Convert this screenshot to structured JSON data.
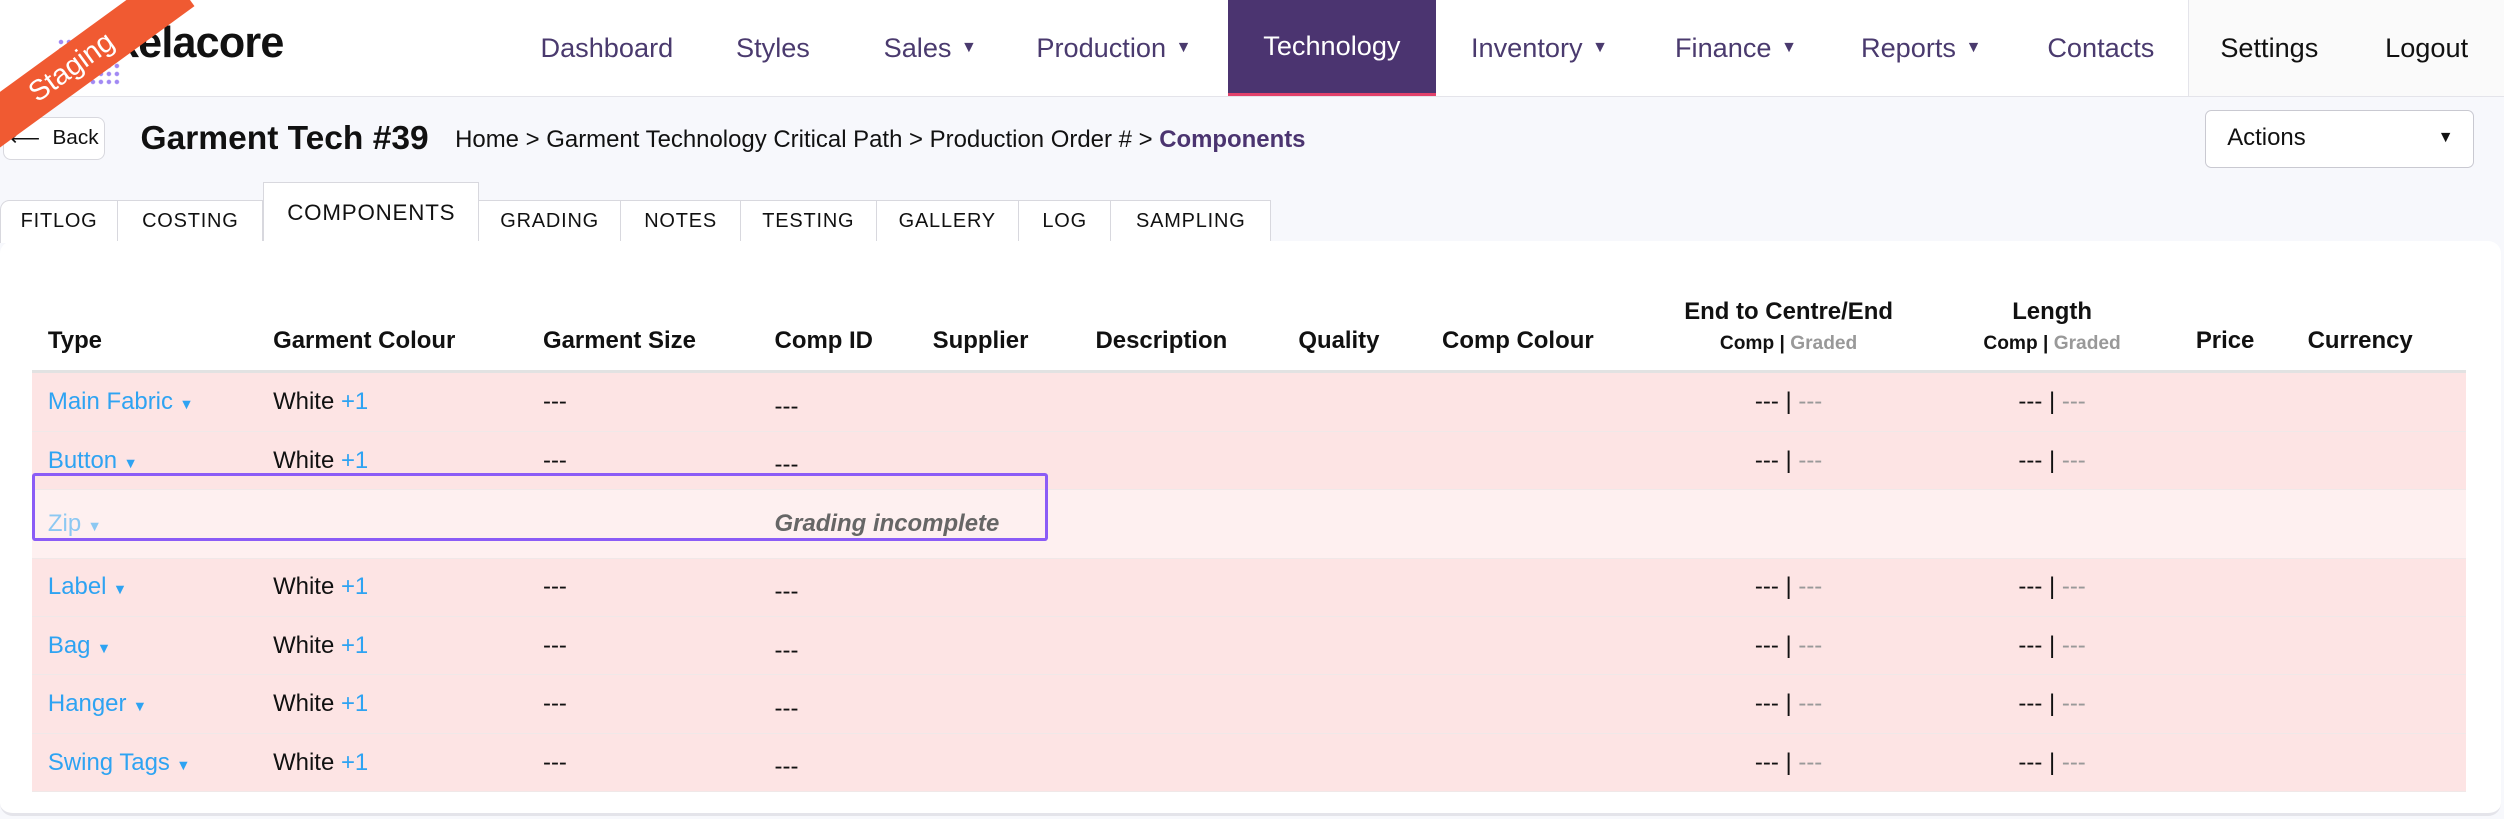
{
  "brand": {
    "logo_text": "kelacore",
    "env_badge": "Staging"
  },
  "nav": {
    "items": [
      {
        "label": "Dashboard",
        "caret": false
      },
      {
        "label": "Styles",
        "caret": false
      },
      {
        "label": "Sales",
        "caret": true
      },
      {
        "label": "Production",
        "caret": true
      },
      {
        "label": "Technology",
        "caret": false,
        "active": true
      },
      {
        "label": "Inventory",
        "caret": true
      },
      {
        "label": "Finance",
        "caret": true
      },
      {
        "label": "Reports",
        "caret": true
      },
      {
        "label": "Contacts",
        "caret": false
      }
    ],
    "settings": "Settings",
    "logout": "Logout"
  },
  "header": {
    "back": "Back",
    "title": "Garment Tech #39",
    "breadcrumb": "Home > Garment Technology Critical Path > Production Order # > ",
    "breadcrumb_current": "Components",
    "actions": "Actions"
  },
  "tabs": [
    "FITLOG",
    "COSTING",
    "COMPONENTS",
    "GRADING",
    "NOTES",
    "TESTING",
    "GALLERY",
    "LOG",
    "SAMPLING"
  ],
  "active_tab": "COMPONENTS",
  "table": {
    "headers": {
      "type": "Type",
      "colour": "Garment Colour",
      "size": "Garment Size",
      "comp_id": "Comp ID",
      "supplier": "Supplier",
      "description": "Description",
      "quality": "Quality",
      "comp_colour": "Comp Colour",
      "end": "End to Centre/End",
      "length": "Length",
      "comp": "Comp",
      "graded": "Graded",
      "price": "Price",
      "currency": "Currency"
    },
    "rows": [
      {
        "type": "Main Fabric",
        "colour": "White",
        "extra": "+1",
        "size": "---",
        "comp_id": "---",
        "end_comp": "---",
        "end_graded": "---",
        "len_comp": "---",
        "len_graded": "---"
      },
      {
        "type": "Button",
        "colour": "White",
        "extra": "+1",
        "size": "---",
        "comp_id": "---",
        "end_comp": "---",
        "end_graded": "---",
        "len_comp": "---",
        "len_graded": "---"
      },
      {
        "type": "Zip",
        "status": "Grading incomplete"
      },
      {
        "type": "Label",
        "colour": "White",
        "extra": "+1",
        "size": "---",
        "comp_id": "---",
        "end_comp": "---",
        "end_graded": "---",
        "len_comp": "---",
        "len_graded": "---"
      },
      {
        "type": "Bag",
        "colour": "White",
        "extra": "+1",
        "size": "---",
        "comp_id": "---",
        "end_comp": "---",
        "end_graded": "---",
        "len_comp": "---",
        "len_graded": "---"
      },
      {
        "type": "Hanger",
        "colour": "White",
        "extra": "+1",
        "size": "---",
        "comp_id": "---",
        "end_comp": "---",
        "end_graded": "---",
        "len_comp": "---",
        "len_graded": "---"
      },
      {
        "type": "Swing Tags",
        "colour": "White",
        "extra": "+1",
        "size": "---",
        "comp_id": "---",
        "end_comp": "---",
        "end_graded": "---",
        "len_comp": "---",
        "len_graded": "---"
      }
    ]
  },
  "colors": {
    "accent": "#4b3470",
    "link": "#2ea3f2",
    "row_bg": "#fde4e4",
    "highlight": "#8b5cf6",
    "badge": "#f05a32"
  }
}
